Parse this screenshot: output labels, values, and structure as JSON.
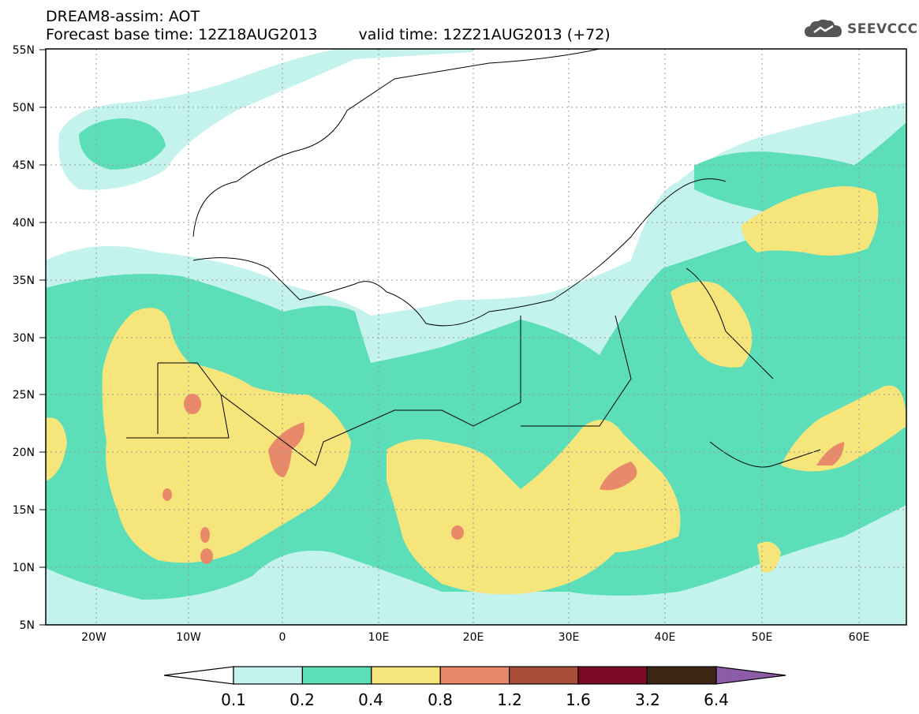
{
  "header": {
    "line1": "DREAM8-assim: AOT",
    "line2_base": "Forecast base time: 12Z18AUG2013",
    "line2_valid": "valid time: 12Z21AUG2013 (+72)"
  },
  "logo": {
    "text": "SEEVCCC",
    "icon": "cloud-logo-icon"
  },
  "lat_labels": [
    "55N",
    "50N",
    "45N",
    "40N",
    "35N",
    "30N",
    "25N",
    "20N",
    "15N",
    "10N",
    "5N"
  ],
  "lon_labels": [
    "20W",
    "10W",
    "0",
    "10E",
    "20E",
    "30E",
    "40E",
    "50E",
    "60E"
  ],
  "colorbar": {
    "colors": [
      "#c4f2ec",
      "#5cdfb8",
      "#f5e57a",
      "#e88a6a",
      "#a84e3a",
      "#7a0a28",
      "#3d2614",
      "#8c5ca8"
    ],
    "labels": [
      "0.1",
      "0.2",
      "0.4",
      "0.8",
      "1.2",
      "1.6",
      "3.2",
      "6.4"
    ]
  }
}
